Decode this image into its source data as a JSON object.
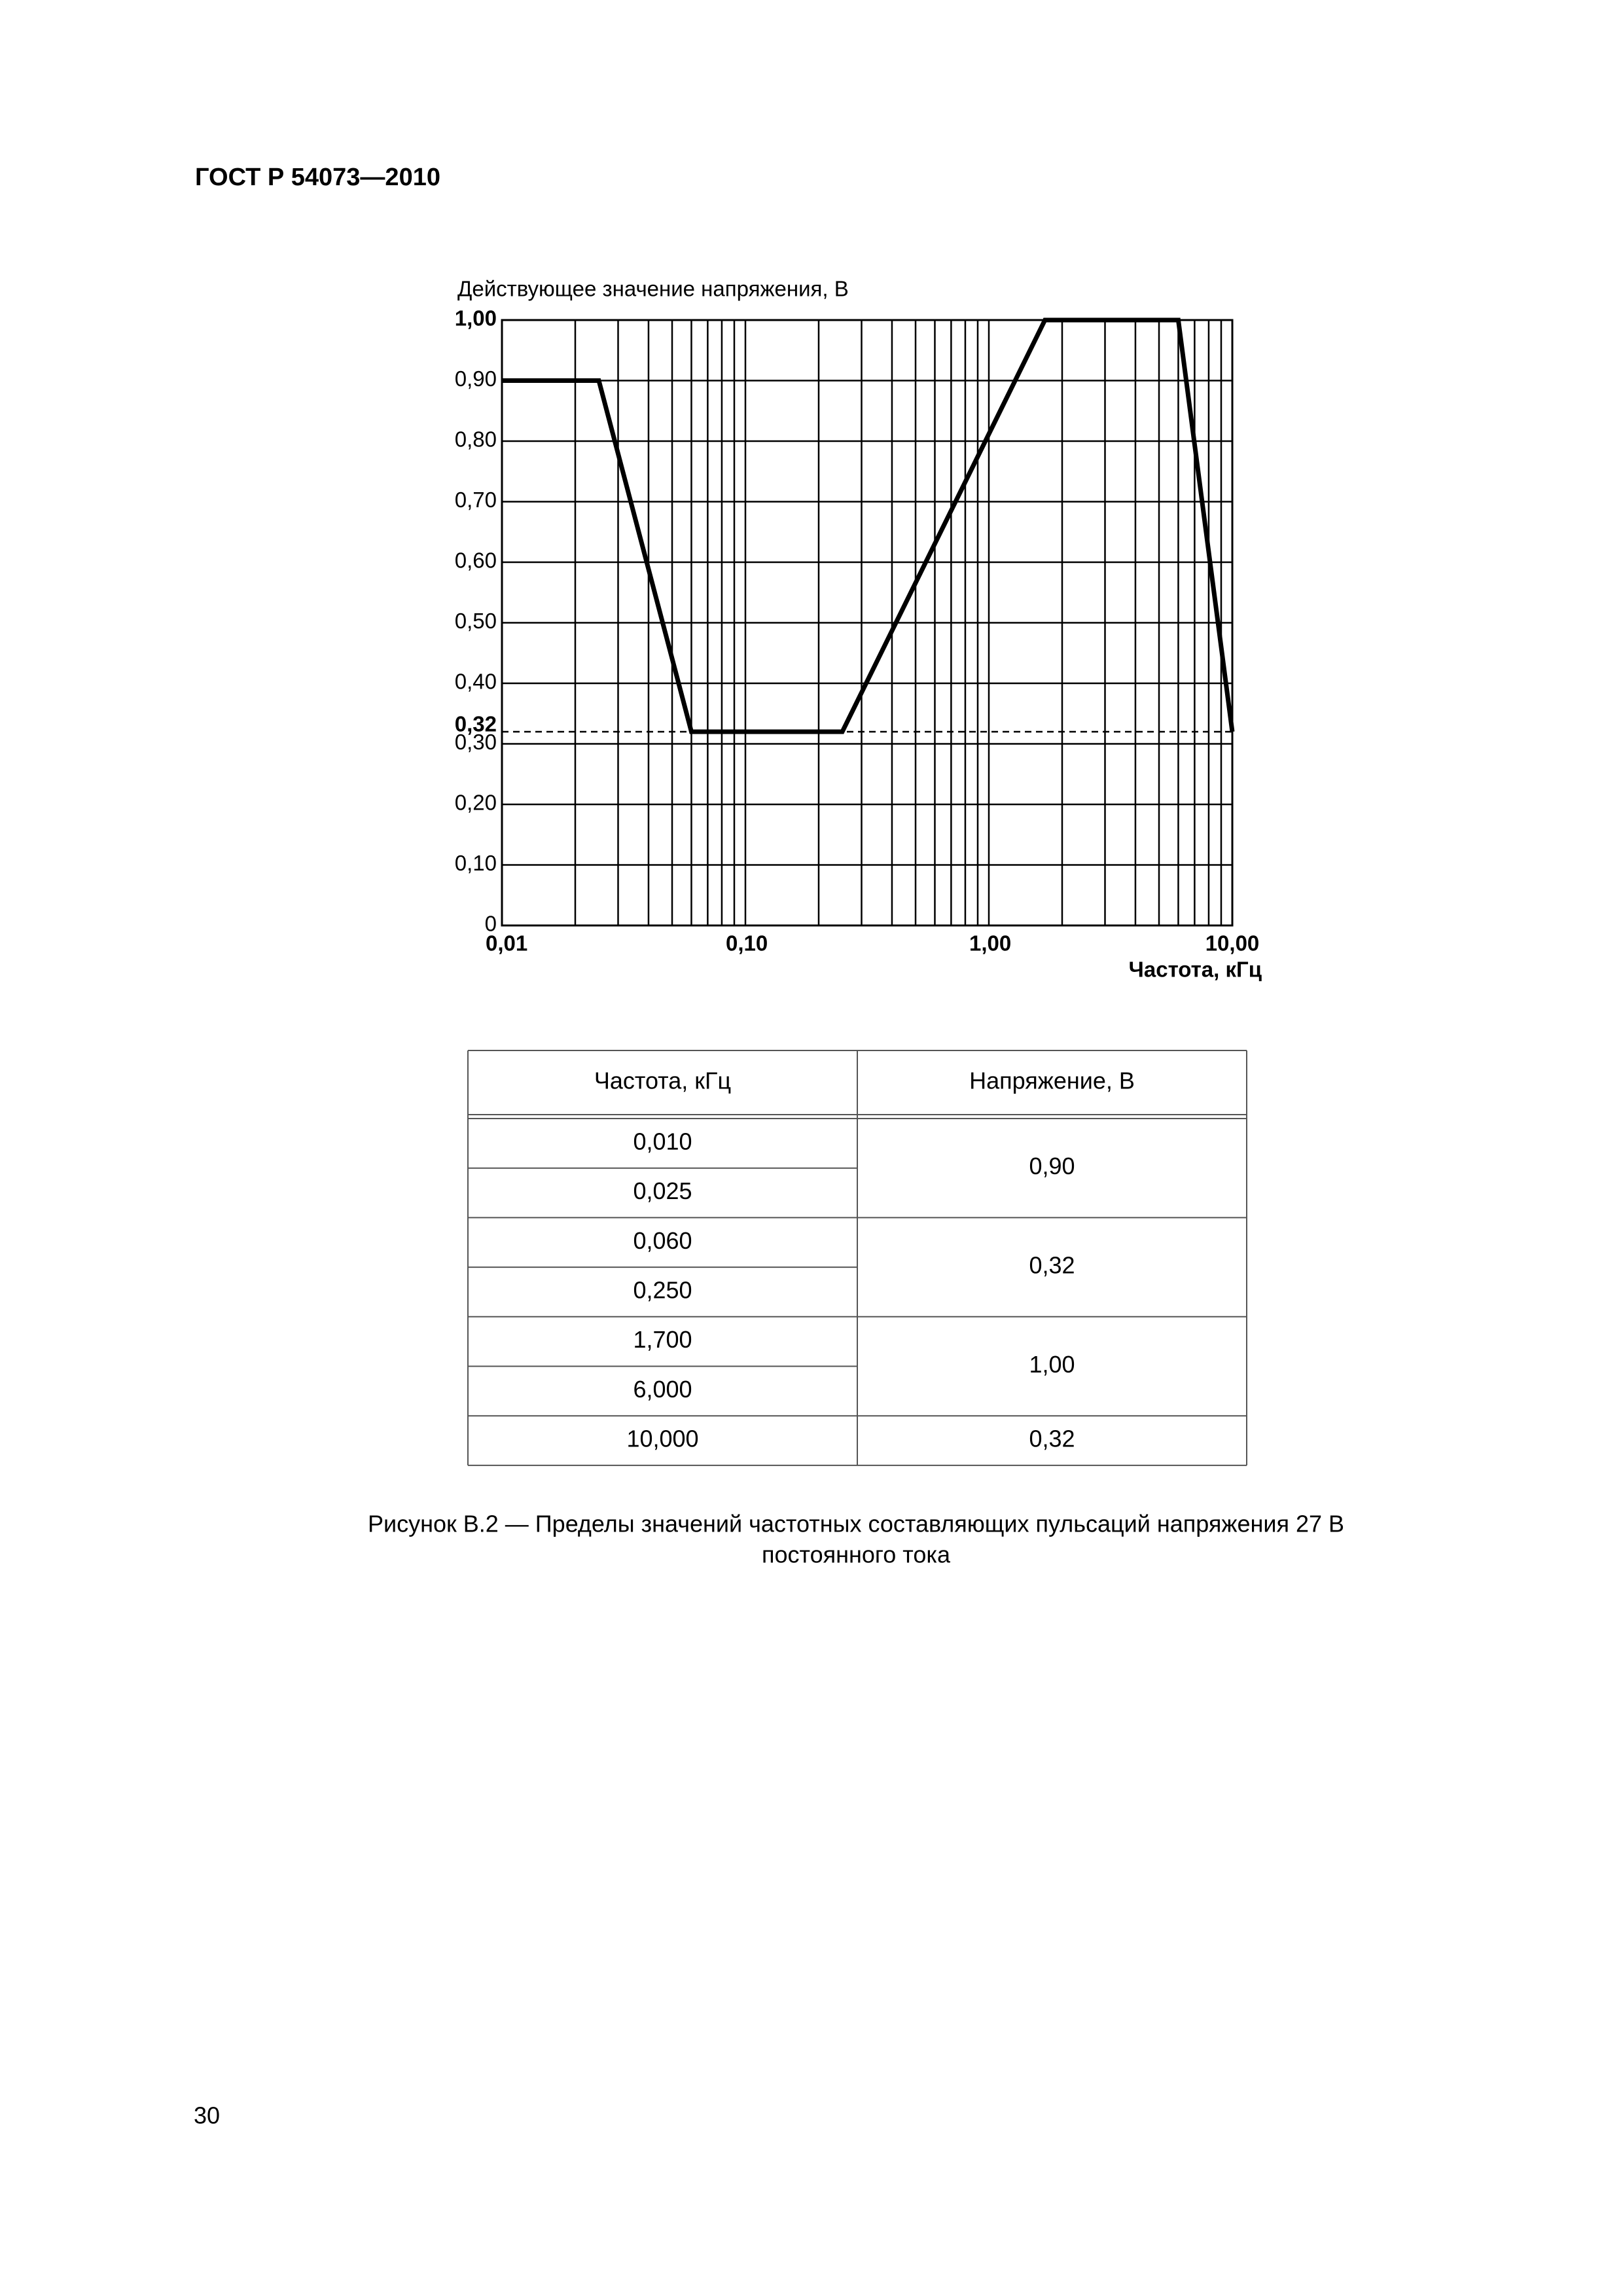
{
  "header": {
    "title": "ГОСТ Р 54073—2010"
  },
  "chart_data": {
    "type": "line",
    "ylabel": "Действующее значение напряжения, В",
    "xlabel": "Частота, кГц",
    "x": [
      0.01,
      0.025,
      0.06,
      0.25,
      1.7,
      6.0,
      10
    ],
    "values": [
      0.9,
      0.9,
      0.32,
      0.32,
      1.0,
      1.0,
      0.32
    ],
    "color": "#000000",
    "xscale": "log",
    "xlim": [
      0.01,
      10
    ],
    "ylim": [
      0,
      1.0
    ],
    "xticks": [
      {
        "value": 0.01,
        "label": "0,01"
      },
      {
        "value": 0.1,
        "label": "0,10"
      },
      {
        "value": 1,
        "label": "1,00"
      },
      {
        "value": 10,
        "label": "10,00"
      }
    ],
    "yticks": [
      0,
      {
        "value": 0.1,
        "label": "0,10"
      },
      {
        "value": 0.2,
        "label": "0,20"
      },
      {
        "value": 0.3,
        "label": "0,30"
      },
      {
        "value": 0.32,
        "label": "0,32",
        "line": "dashed"
      },
      {
        "value": 0.4,
        "label": "0,40"
      },
      {
        "value": 0.5,
        "label": "0,50"
      },
      {
        "value": 0.6,
        "label": "0,60"
      },
      {
        "value": 0.7,
        "label": "0,70"
      },
      {
        "value": 0.8,
        "label": "0,80"
      },
      {
        "value": 0.9,
        "label": "0,90"
      },
      {
        "value": 1.0,
        "label": "1,00"
      }
    ],
    "grid": true,
    "minor_grid": true
  },
  "table": {
    "header": [
      "Частота, кГц",
      "Напряжение, В"
    ],
    "groups": [
      {
        "frequencies": [
          "0,010",
          "0,025"
        ],
        "voltage": "0,90"
      },
      {
        "frequencies": [
          "0,060",
          "0,250"
        ],
        "voltage": "0,32"
      },
      {
        "frequencies": [
          "1,700",
          "6,000"
        ],
        "voltage": "1,00"
      },
      {
        "frequencies": [
          "10,000"
        ],
        "voltage": "0,32"
      }
    ]
  },
  "caption": [
    "Рисунок В.2 — Пределы значений частотных составляющих пульсаций напряжения 27 В",
    "постоянного тока"
  ],
  "page_number": "30"
}
